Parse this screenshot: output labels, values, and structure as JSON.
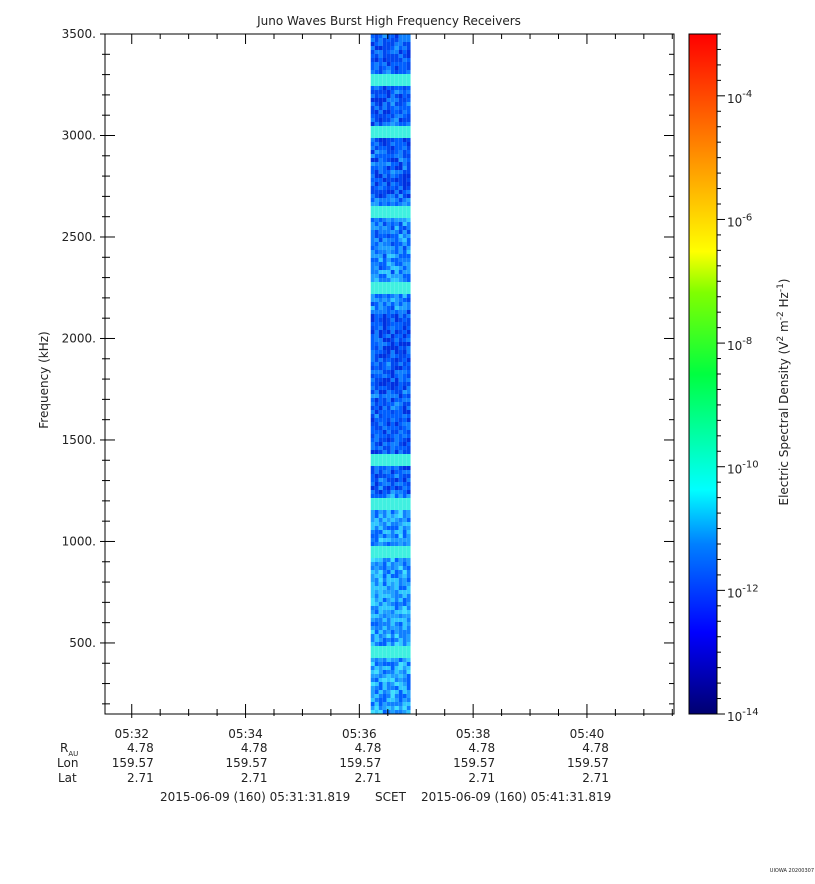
{
  "chart_data": {
    "type": "heatmap",
    "title": "Juno Waves Burst High Frequency Receivers",
    "ylabel": "Frequency (kHz)",
    "ylim": [
      150,
      3500
    ],
    "yticks": [
      {
        "value": 500,
        "label": "500."
      },
      {
        "value": 1000,
        "label": "1000."
      },
      {
        "value": 1500,
        "label": "1500."
      },
      {
        "value": 2000,
        "label": "2000."
      },
      {
        "value": 2500,
        "label": "2500."
      },
      {
        "value": 3000,
        "label": "3000."
      },
      {
        "value": 3500,
        "label": "3500."
      }
    ],
    "xlim_minutes": [
      31.53,
      41.53
    ],
    "xticks": [
      {
        "value": 32,
        "label": "05:32"
      },
      {
        "value": 34,
        "label": "05:34"
      },
      {
        "value": 36,
        "label": "05:36"
      },
      {
        "value": 38,
        "label": "05:38"
      },
      {
        "value": 40,
        "label": "05:40"
      }
    ],
    "data_band_minutes": [
      36.2,
      36.9
    ],
    "bright_freq_bands_khz": [
      3280,
      3020,
      2640,
      2250,
      1410,
      1200,
      950,
      460
    ],
    "colorbar": {
      "label_prefix": "Electric Spectral Density (V",
      "label_sup1": "2",
      "label_mid": " m",
      "label_sup2": "-2",
      "label_mid2": " Hz",
      "label_sup3": "-1",
      "label_suffix": ")",
      "log_range": [
        -14,
        -3
      ],
      "ticks": [
        {
          "exp": -14,
          "base": "10",
          "sup": "-14"
        },
        {
          "exp": -12,
          "base": "10",
          "sup": "-12"
        },
        {
          "exp": -10,
          "base": "10",
          "sup": "-10"
        },
        {
          "exp": -8,
          "base": "10",
          "sup": "-8"
        },
        {
          "exp": -6,
          "base": "10",
          "sup": "-6"
        },
        {
          "exp": -4,
          "base": "10",
          "sup": "-4"
        }
      ]
    },
    "ephemeris": {
      "labels": {
        "rau_base": "R",
        "rau_sub": "AU",
        "lon": "Lon",
        "lat": "Lat"
      },
      "rau": [
        "4.78",
        "4.78",
        "4.78",
        "4.78",
        "4.78"
      ],
      "lon": [
        "159.57",
        "159.57",
        "159.57",
        "159.57",
        "159.57"
      ],
      "lat": [
        "2.71",
        "2.71",
        "2.71",
        "2.71",
        "2.71"
      ]
    },
    "time_range": {
      "start": "2015-06-09 (160) 05:31:31.819",
      "label": "SCET",
      "end": "2015-06-09 (160) 05:41:31.819"
    }
  },
  "footer": "UIOWA 20200307"
}
